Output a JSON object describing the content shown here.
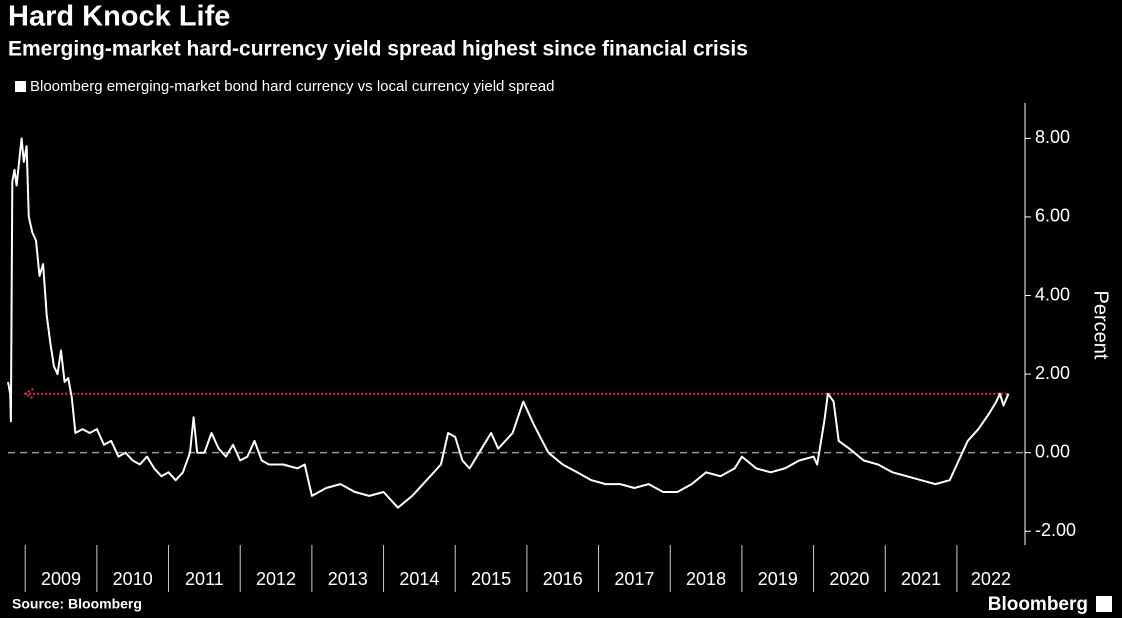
{
  "chart_data": {
    "type": "line",
    "title": "Hard Knock Life",
    "subtitle": "Emerging-market hard-currency yield spread highest since financial crisis",
    "y_label": "Percent",
    "source": "Source: Bloomberg",
    "brand": "Bloomberg",
    "x": [
      2008.76,
      2008.79,
      2008.8,
      2008.82,
      2008.85,
      2008.88,
      2008.92,
      2008.95,
      2008.98,
      2009.02,
      2009.05,
      2009.1,
      2009.15,
      2009.2,
      2009.25,
      2009.3,
      2009.35,
      2009.4,
      2009.45,
      2009.5,
      2009.55,
      2009.6,
      2009.65,
      2009.7,
      2009.8,
      2009.9,
      2010.0,
      2010.1,
      2010.2,
      2010.3,
      2010.4,
      2010.5,
      2010.6,
      2010.7,
      2010.8,
      2010.9,
      2011.0,
      2011.1,
      2011.2,
      2011.3,
      2011.35,
      2011.4,
      2011.5,
      2011.6,
      2011.7,
      2011.8,
      2011.9,
      2012.0,
      2012.1,
      2012.2,
      2012.3,
      2012.4,
      2012.6,
      2012.8,
      2012.9,
      2013.0,
      2013.2,
      2013.4,
      2013.6,
      2013.8,
      2014.0,
      2014.1,
      2014.2,
      2014.4,
      2014.6,
      2014.8,
      2014.9,
      2015.0,
      2015.1,
      2015.2,
      2015.4,
      2015.5,
      2015.6,
      2015.8,
      2015.95,
      2016.1,
      2016.3,
      2016.5,
      2016.7,
      2016.9,
      2017.1,
      2017.3,
      2017.5,
      2017.7,
      2017.9,
      2018.1,
      2018.3,
      2018.5,
      2018.7,
      2018.9,
      2019.0,
      2019.2,
      2019.4,
      2019.6,
      2019.8,
      2020.0,
      2020.05,
      2020.15,
      2020.2,
      2020.28,
      2020.35,
      2020.5,
      2020.7,
      2020.9,
      2021.1,
      2021.3,
      2021.5,
      2021.7,
      2021.9,
      2022.0,
      2022.15,
      2022.3,
      2022.45,
      2022.55,
      2022.6,
      2022.65,
      2022.72
    ],
    "series": [
      {
        "name": "Bloomberg emerging-market bond hard currency vs local currency yield spread",
        "color": "#ffffff",
        "values": [
          1.8,
          1.5,
          0.8,
          6.9,
          7.2,
          6.8,
          7.5,
          8.0,
          7.4,
          7.8,
          6.0,
          5.6,
          5.4,
          4.5,
          4.8,
          3.5,
          2.8,
          2.2,
          2.0,
          2.6,
          1.8,
          1.9,
          1.4,
          0.5,
          0.6,
          0.5,
          0.6,
          0.2,
          0.3,
          -0.1,
          0.0,
          -0.2,
          -0.3,
          -0.1,
          -0.4,
          -0.6,
          -0.5,
          -0.7,
          -0.5,
          0.0,
          0.9,
          0.0,
          0.0,
          0.5,
          0.1,
          -0.1,
          0.2,
          -0.2,
          -0.1,
          0.3,
          -0.2,
          -0.3,
          -0.3,
          -0.4,
          -0.3,
          -1.1,
          -0.9,
          -0.8,
          -1.0,
          -1.1,
          -1.0,
          -1.2,
          -1.4,
          -1.1,
          -0.7,
          -0.3,
          0.5,
          0.4,
          -0.2,
          -0.4,
          0.2,
          0.5,
          0.1,
          0.5,
          1.3,
          0.7,
          0.0,
          -0.3,
          -0.5,
          -0.7,
          -0.8,
          -0.8,
          -0.9,
          -0.8,
          -1.0,
          -1.0,
          -0.8,
          -0.5,
          -0.6,
          -0.4,
          -0.1,
          -0.4,
          -0.5,
          -0.4,
          -0.2,
          -0.1,
          -0.3,
          0.8,
          1.5,
          1.3,
          0.3,
          0.1,
          -0.2,
          -0.3,
          -0.5,
          -0.6,
          -0.7,
          -0.8,
          -0.7,
          -0.3,
          0.3,
          0.6,
          1.0,
          1.3,
          1.5,
          1.2,
          1.5
        ]
      }
    ],
    "xlim": [
      2008.76,
      2022.95
    ],
    "xticks": [
      2009,
      2010,
      2011,
      2012,
      2013,
      2014,
      2015,
      2016,
      2017,
      2018,
      2019,
      2020,
      2021,
      2022
    ],
    "ylim": [
      -2.35,
      8.9
    ],
    "yticks": [
      {
        "value": -2,
        "label": "-2.00"
      },
      {
        "value": 0,
        "label": "0.00"
      },
      {
        "value": 2,
        "label": "2.00"
      },
      {
        "value": 4,
        "label": "4.00"
      },
      {
        "value": 6,
        "label": "6.00"
      },
      {
        "value": 8,
        "label": "8.00"
      }
    ],
    "zero_line_color": "#9a9a9a",
    "reference_line": {
      "value": 1.5,
      "from": 2009.0,
      "to": 2022.72,
      "color": "#e0323c"
    }
  }
}
